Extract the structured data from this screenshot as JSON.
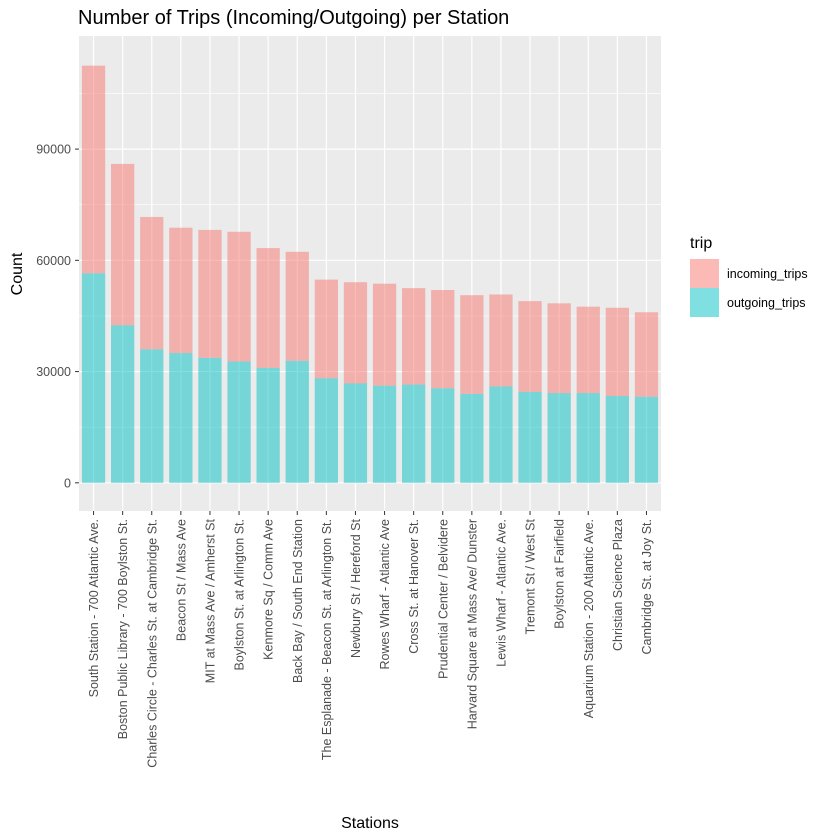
{
  "chart_data": {
    "type": "bar",
    "stacked": true,
    "title": "Number of Trips (Incoming/Outgoing) per Station",
    "xlabel": "Stations",
    "ylabel": "Count",
    "ylim": [
      -7600,
      120500
    ],
    "yticks": [
      0,
      30000,
      60000,
      90000
    ],
    "ytick_labels": [
      "0",
      "30000",
      "60000",
      "90000"
    ],
    "grid": true,
    "legend": {
      "title": "trip",
      "position": "right"
    },
    "categories": [
      "South Station - 700 Atlantic Ave.",
      "Boston Public Library - 700 Boylston St.",
      "Charles Circle - Charles St. at Cambridge St.",
      "Beacon St / Mass Ave",
      "MIT at Mass Ave / Amherst St",
      "Boylston St. at Arlington St.",
      "Kenmore Sq / Comm Ave",
      "Back Bay / South End Station",
      "The Esplanade - Beacon St. at Arlington St.",
      "Newbury St / Hereford St",
      "Rowes Wharf - Atlantic Ave",
      "Cross St. at Hanover St.",
      "Prudential Center / Belvidere",
      "Harvard Square at Mass Ave/ Dunster",
      "Lewis Wharf - Atlantic Ave.",
      "Tremont St / West St",
      "Boylston at Fairfield",
      "Aquarium Station - 200 Atlantic Ave.",
      "Christian Science Plaza",
      "Cambridge St. at Joy St."
    ],
    "series": [
      {
        "name": "outgoing_trips",
        "color": "#00BFC4",
        "values": [
          56500,
          42500,
          36000,
          35000,
          33700,
          32700,
          31000,
          32900,
          28200,
          26800,
          26200,
          26500,
          25500,
          24000,
          26000,
          24500,
          24200,
          24200,
          23400,
          23200
        ]
      },
      {
        "name": "incoming_trips",
        "color": "#F8766D",
        "values": [
          56000,
          43500,
          35700,
          33800,
          34500,
          35000,
          32300,
          29400,
          26600,
          27300,
          27500,
          26000,
          26500,
          26600,
          24800,
          24500,
          24200,
          23300,
          23800,
          22800
        ]
      }
    ]
  }
}
